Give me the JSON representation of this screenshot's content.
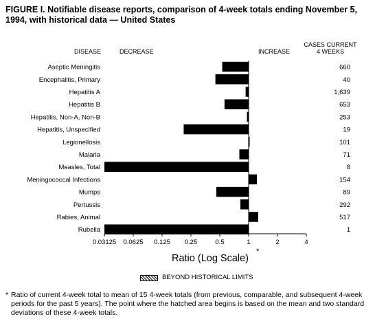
{
  "figure": {
    "title": "FIGURE I. Notifiable disease reports, comparison of 4-week totals ending November 5, 1994, with historical data — United States",
    "legend_label": "BEYOND HISTORICAL LIMITS",
    "footnote_marker": "*",
    "footnote": "Ratio of current 4-week total to mean of 15 4-week totals (from previous, comparable, and subsequent 4-week periods for the past 5 years). The point where the hatched area begins is based on the mean and two standard deviations of these 4-week totals."
  },
  "chart_data": {
    "type": "bar",
    "orientation": "horizontal",
    "column_headers": {
      "disease": "DISEASE",
      "decrease": "DECREASE",
      "increase": "INCREASE",
      "cases": "CASES CURRENT 4 WEEKS"
    },
    "xlabel": "Ratio (Log Scale)",
    "xlabel_marker": "*",
    "xscale": "log2",
    "xlim": [
      0.03125,
      4
    ],
    "xticks": [
      "0.03125",
      "0.0625",
      "0.125",
      "0.25",
      "0.5",
      "1",
      "2",
      "4"
    ],
    "reference_line": 1,
    "categories": [
      "Aseptic Meningitis",
      "Encephalitis, Primary",
      "Hepatitis A",
      "Hepatitis B",
      "Hepatitis, Non-A, Non-B",
      "Hepatitis, Unspecified",
      "Legionellosis",
      "Malaria",
      "Measles, Total",
      "Meningococcal Infections",
      "Mumps",
      "Pertussis",
      "Rabies, Animal",
      "Rubella"
    ],
    "values": [
      0.53,
      0.45,
      0.93,
      0.56,
      0.96,
      0.21,
      1.02,
      0.8,
      0.03125,
      1.22,
      0.46,
      0.82,
      1.26,
      0.03125
    ],
    "cases": [
      "660",
      "40",
      "1,639",
      "653",
      "253",
      "19",
      "101",
      "71",
      "8",
      "154",
      "89",
      "292",
      "517",
      "1"
    ],
    "bar_color": "#000000"
  }
}
